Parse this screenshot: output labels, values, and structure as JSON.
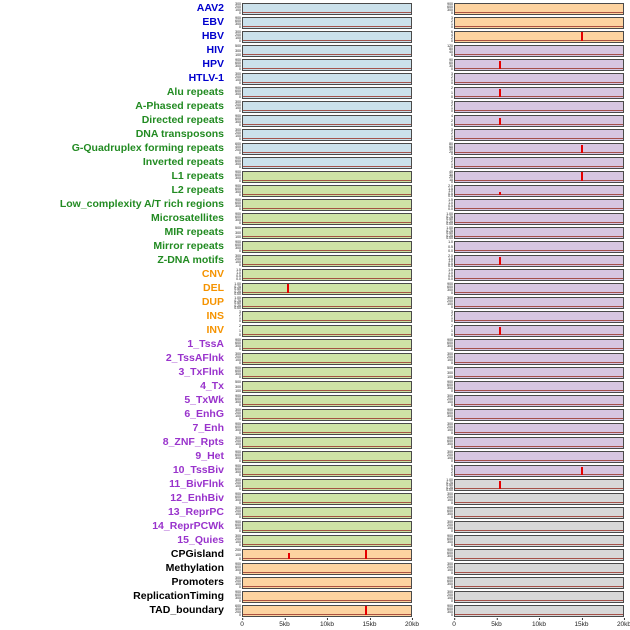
{
  "colors": {
    "labels": {
      "virus": "#0000cd",
      "repeat": "#228b22",
      "sv": "#f59300",
      "chromatin": "#9933cc",
      "other": "#000000"
    },
    "panels": {
      "blue": "#cbe1eb",
      "green": "#cfe3a6",
      "orange": "#fdd3a0",
      "purple": "#d7c6e1",
      "gray": "#d8d8d8"
    },
    "spike": "#e60000",
    "trace": "#9c3a30"
  },
  "chart_data": {
    "type": "line",
    "x_ticks": [
      "0",
      "5kb",
      "10kb",
      "15kb",
      "20kb"
    ],
    "x_range_kb": [
      0,
      20
    ],
    "rows": [
      {
        "label": "AAV2",
        "group": "virus",
        "left_bg": "blue",
        "right_bg": "orange",
        "lt": [
          "300",
          "200",
          "100",
          "0"
        ],
        "rt": [
          "900",
          "600",
          "300",
          "0"
        ],
        "ls": [],
        "rs": []
      },
      {
        "label": "EBV",
        "group": "virus",
        "left_bg": "blue",
        "right_bg": "orange",
        "lt": [
          "900",
          "600",
          "300",
          "0"
        ],
        "rt": [
          "3",
          "2",
          "1",
          "0"
        ],
        "ls": [],
        "rs": []
      },
      {
        "label": "HBV",
        "group": "virus",
        "left_bg": "blue",
        "right_bg": "orange",
        "lt": [
          "300",
          "200",
          "100",
          "0"
        ],
        "rt": [
          "6",
          "4",
          "2",
          "0"
        ],
        "ls": [],
        "rs": [
          {
            "kb": 15.1,
            "h": 0.85
          }
        ]
      },
      {
        "label": "HIV",
        "group": "virus",
        "left_bg": "blue",
        "right_bg": "purple",
        "lt": [
          "500",
          "300",
          "100"
        ],
        "rt": [
          "120",
          "80",
          "40",
          "0"
        ],
        "ls": [],
        "rs": []
      },
      {
        "label": "HPV",
        "group": "virus",
        "left_bg": "blue",
        "right_bg": "purple",
        "lt": [
          "900",
          "600",
          "300",
          "0"
        ],
        "rt": [
          "90",
          "60",
          "30",
          "0"
        ],
        "ls": [],
        "rs": [
          {
            "kb": 5.3,
            "h": 0.8
          }
        ]
      },
      {
        "label": "HTLV-1",
        "group": "virus",
        "left_bg": "blue",
        "right_bg": "purple",
        "lt": [
          "300",
          "200",
          "100",
          "0"
        ],
        "rt": [
          "3",
          "2",
          "1",
          "0"
        ],
        "ls": [],
        "rs": []
      },
      {
        "label": "Alu repeats",
        "group": "repeat",
        "left_bg": "blue",
        "right_bg": "purple",
        "lt": [
          "900",
          "600",
          "300",
          "0"
        ],
        "rt": [
          "2",
          "1",
          "0"
        ],
        "ls": [],
        "rs": [
          {
            "kb": 5.3,
            "h": 0.8
          }
        ]
      },
      {
        "label": "A-Phased repeats",
        "group": "repeat",
        "left_bg": "blue",
        "right_bg": "purple",
        "lt": [
          "300",
          "200",
          "100",
          "0"
        ],
        "rt": [
          "3",
          "2",
          "1",
          "0"
        ],
        "ls": [],
        "rs": []
      },
      {
        "label": "Directed repeats",
        "group": "repeat",
        "left_bg": "blue",
        "right_bg": "purple",
        "lt": [
          "900",
          "600",
          "300",
          "0"
        ],
        "rt": [
          "4",
          "2",
          "0"
        ],
        "ls": [],
        "rs": [
          {
            "kb": 5.4,
            "h": 0.7
          }
        ]
      },
      {
        "label": "DNA transposons",
        "group": "repeat",
        "left_bg": "blue",
        "right_bg": "purple",
        "lt": [
          "300",
          "200",
          "100",
          "0"
        ],
        "rt": [
          "3",
          "2",
          "1",
          "0"
        ],
        "ls": [],
        "rs": []
      },
      {
        "label": "G-Quadruplex forming repeats",
        "group": "repeat",
        "left_bg": "blue",
        "right_bg": "purple",
        "lt": [
          "600",
          "400",
          "200",
          "0"
        ],
        "rt": [
          "80",
          "60",
          "40",
          "20",
          "0"
        ],
        "ls": [],
        "rs": [
          {
            "kb": 15.1,
            "h": 0.8
          }
        ]
      },
      {
        "label": "Inverted repeats",
        "group": "repeat",
        "left_bg": "blue",
        "right_bg": "purple",
        "lt": [
          "900",
          "600",
          "300",
          "0"
        ],
        "rt": [
          "3",
          "2",
          "1",
          "0"
        ],
        "ls": [],
        "rs": []
      },
      {
        "label": "L1 repeats",
        "group": "repeat",
        "left_bg": "green",
        "right_bg": "purple",
        "lt": [
          "900",
          "600",
          "300",
          "0"
        ],
        "rt": [
          "40",
          "30",
          "20",
          "10",
          "0"
        ],
        "ls": [],
        "rs": [
          {
            "kb": 15.1,
            "h": 0.85
          }
        ]
      },
      {
        "label": "L2 repeats",
        "group": "repeat",
        "left_bg": "green",
        "right_bg": "purple",
        "lt": [
          "900",
          "600",
          "300",
          "0"
        ],
        "rt": [
          "2.0",
          "1.5",
          "1.0",
          "0.5",
          "0.0"
        ],
        "ls": [],
        "rs": [
          {
            "kb": 5.3,
            "h": 0.3
          }
        ]
      },
      {
        "label": "Low_complexity A/T rich regions",
        "group": "repeat",
        "left_bg": "green",
        "right_bg": "purple",
        "lt": [
          "900",
          "600",
          "300",
          "0"
        ],
        "rt": [
          "1.5",
          "1.0",
          "0.5",
          "0.0"
        ],
        "ls": [],
        "rs": []
      },
      {
        "label": "Microsatellites",
        "group": "repeat",
        "left_bg": "green",
        "right_bg": "purple",
        "lt": [
          "900",
          "600",
          "300",
          "0"
        ],
        "rt": [
          "1.00",
          "0.75",
          "0.50",
          "0.25",
          "0.00"
        ],
        "ls": [],
        "rs": []
      },
      {
        "label": "MIR repeats",
        "group": "repeat",
        "left_bg": "green",
        "right_bg": "purple",
        "lt": [
          "500",
          "300",
          "100"
        ],
        "rt": [
          "1.00",
          "0.75",
          "0.50",
          "0.25",
          "0.00"
        ],
        "ls": [],
        "rs": []
      },
      {
        "label": "Mirror repeats",
        "group": "repeat",
        "left_bg": "green",
        "right_bg": "purple",
        "lt": [
          "900",
          "600",
          "300",
          "0"
        ],
        "rt": [
          "1.0",
          "0.5",
          "0.0"
        ],
        "ls": [],
        "rs": []
      },
      {
        "label": "Z-DNA motifs",
        "group": "repeat",
        "left_bg": "green",
        "right_bg": "purple",
        "lt": [
          "300",
          "200",
          "100",
          "0"
        ],
        "rt": [
          "2.0",
          "1.5",
          "1.0",
          "0.5",
          "0.0"
        ],
        "ls": [],
        "rs": [
          {
            "kb": 5.3,
            "h": 0.75
          }
        ]
      },
      {
        "label": "CNV",
        "group": "sv",
        "left_bg": "green",
        "right_bg": "purple",
        "lt": [
          "1.5",
          "1.0",
          "0.5",
          "0.0"
        ],
        "rt": [
          "1.5",
          "1.0",
          "0.5",
          "0.0"
        ],
        "ls": [],
        "rs": []
      },
      {
        "label": "DEL",
        "group": "sv",
        "left_bg": "green",
        "right_bg": "purple",
        "lt": [
          "1.00",
          "0.75",
          "0.50",
          "0.25",
          "0.00"
        ],
        "rt": [
          "900",
          "600",
          "300",
          "0"
        ],
        "ls": [
          {
            "kb": 5.4,
            "h": 0.85
          }
        ],
        "rs": []
      },
      {
        "label": "DUP",
        "group": "sv",
        "left_bg": "green",
        "right_bg": "purple",
        "lt": [
          "1.00",
          "0.75",
          "0.50",
          "0.25",
          "0.00"
        ],
        "rt": [
          "300",
          "200",
          "100",
          "0"
        ],
        "ls": [],
        "rs": []
      },
      {
        "label": "INS",
        "group": "sv",
        "left_bg": "green",
        "right_bg": "purple",
        "lt": [
          "3",
          "2",
          "1",
          "0"
        ],
        "rt": [
          "3",
          "2",
          "1",
          "0"
        ],
        "ls": [],
        "rs": []
      },
      {
        "label": "INV",
        "group": "sv",
        "left_bg": "green",
        "right_bg": "purple",
        "lt": [
          "2",
          "1",
          "0"
        ],
        "rt": [
          "2",
          "1",
          "0"
        ],
        "ls": [],
        "rs": [
          {
            "kb": 5.3,
            "h": 0.8
          }
        ]
      },
      {
        "label": "1_TssA",
        "group": "chromatin",
        "left_bg": "green",
        "right_bg": "purple",
        "lt": [
          "900",
          "600",
          "300",
          "0"
        ],
        "rt": [
          "900",
          "600",
          "300",
          "0"
        ],
        "ls": [],
        "rs": []
      },
      {
        "label": "2_TssAFlnk",
        "group": "chromatin",
        "left_bg": "green",
        "right_bg": "purple",
        "lt": [
          "300",
          "200",
          "100",
          "0"
        ],
        "rt": [
          "300",
          "200",
          "100",
          "0"
        ],
        "ls": [],
        "rs": []
      },
      {
        "label": "3_TxFlnk",
        "group": "chromatin",
        "left_bg": "green",
        "right_bg": "purple",
        "lt": [
          "900",
          "600",
          "300",
          "0"
        ],
        "rt": [
          "500",
          "300",
          "100"
        ],
        "ls": [],
        "rs": []
      },
      {
        "label": "4_Tx",
        "group": "chromatin",
        "left_bg": "green",
        "right_bg": "purple",
        "lt": [
          "500",
          "300",
          "100"
        ],
        "rt": [
          "900",
          "600",
          "300",
          "0"
        ],
        "ls": [],
        "rs": []
      },
      {
        "label": "5_TxWk",
        "group": "chromatin",
        "left_bg": "green",
        "right_bg": "purple",
        "lt": [
          "900",
          "600",
          "300",
          "0"
        ],
        "rt": [
          "300",
          "200",
          "100",
          "0"
        ],
        "ls": [],
        "rs": []
      },
      {
        "label": "6_EnhG",
        "group": "chromatin",
        "left_bg": "green",
        "right_bg": "purple",
        "lt": [
          "300",
          "200",
          "100",
          "0"
        ],
        "rt": [
          "900",
          "600",
          "300",
          "0"
        ],
        "ls": [],
        "rs": []
      },
      {
        "label": "7_Enh",
        "group": "chromatin",
        "left_bg": "green",
        "right_bg": "purple",
        "lt": [
          "900",
          "600",
          "300",
          "0"
        ],
        "rt": [
          "300",
          "200",
          "100",
          "0"
        ],
        "ls": [],
        "rs": []
      },
      {
        "label": "8_ZNF_Rpts",
        "group": "chromatin",
        "left_bg": "green",
        "right_bg": "purple",
        "lt": [
          "300",
          "200",
          "100",
          "0"
        ],
        "rt": [
          "900",
          "600",
          "300",
          "0"
        ],
        "ls": [],
        "rs": []
      },
      {
        "label": "9_Het",
        "group": "chromatin",
        "left_bg": "green",
        "right_bg": "purple",
        "lt": [
          "900",
          "600",
          "300",
          "0"
        ],
        "rt": [
          "300",
          "200",
          "100",
          "0"
        ],
        "ls": [],
        "rs": []
      },
      {
        "label": "10_TssBiv",
        "group": "chromatin",
        "left_bg": "green",
        "right_bg": "purple",
        "lt": [
          "900",
          "600",
          "300",
          "0"
        ],
        "rt": [
          "6",
          "4",
          "2",
          "0"
        ],
        "ls": [],
        "rs": [
          {
            "kb": 15.1,
            "h": 0.8
          }
        ]
      },
      {
        "label": "11_BivFlnk",
        "group": "chromatin",
        "left_bg": "green",
        "right_bg": "gray",
        "lt": [
          "300",
          "200",
          "100",
          "0"
        ],
        "rt": [
          "1.00",
          "0.75",
          "0.50",
          "0.25",
          "0.00"
        ],
        "ls": [],
        "rs": [
          {
            "kb": 5.3,
            "h": 0.8
          }
        ]
      },
      {
        "label": "12_EnhBiv",
        "group": "chromatin",
        "left_bg": "green",
        "right_bg": "gray",
        "lt": [
          "900",
          "600",
          "300",
          "0"
        ],
        "rt": [
          "300",
          "200",
          "100",
          "0"
        ],
        "ls": [],
        "rs": []
      },
      {
        "label": "13_ReprPC",
        "group": "chromatin",
        "left_bg": "green",
        "right_bg": "gray",
        "lt": [
          "300",
          "200",
          "100",
          "0"
        ],
        "rt": [
          "900",
          "600",
          "300",
          "0"
        ],
        "ls": [],
        "rs": []
      },
      {
        "label": "14_ReprPCWk",
        "group": "chromatin",
        "left_bg": "green",
        "right_bg": "gray",
        "lt": [
          "900",
          "600",
          "300",
          "0"
        ],
        "rt": [
          "300",
          "200",
          "100",
          "0"
        ],
        "ls": [],
        "rs": []
      },
      {
        "label": "15_Quies",
        "group": "chromatin",
        "left_bg": "green",
        "right_bg": "gray",
        "lt": [
          "300",
          "200",
          "100",
          "0"
        ],
        "rt": [
          "900",
          "600",
          "300",
          "0"
        ],
        "ls": [],
        "rs": []
      },
      {
        "label": "CPGisland",
        "group": "other",
        "left_bg": "orange",
        "right_bg": "gray",
        "lt": [
          "200",
          "100",
          "0"
        ],
        "rt": [
          "900",
          "600",
          "300",
          "0"
        ],
        "ls": [
          {
            "kb": 5.5,
            "h": 0.55
          },
          {
            "kb": 14.7,
            "h": 0.85
          }
        ],
        "rs": []
      },
      {
        "label": "Methylation",
        "group": "other",
        "left_bg": "orange",
        "right_bg": "gray",
        "lt": [
          "900",
          "600",
          "300",
          "0"
        ],
        "rt": [
          "300",
          "200",
          "100",
          "0"
        ],
        "ls": [],
        "rs": []
      },
      {
        "label": "Promoters",
        "group": "other",
        "left_bg": "orange",
        "right_bg": "gray",
        "lt": [
          "300",
          "200",
          "100",
          "0"
        ],
        "rt": [
          "900",
          "600",
          "300",
          "0"
        ],
        "ls": [],
        "rs": []
      },
      {
        "label": "ReplicationTiming",
        "group": "other",
        "left_bg": "orange",
        "right_bg": "gray",
        "lt": [
          "900",
          "600",
          "300",
          "0"
        ],
        "rt": [
          "300",
          "200",
          "100",
          "0"
        ],
        "ls": [],
        "rs": []
      },
      {
        "label": "TAD_boundary",
        "group": "other",
        "left_bg": "orange",
        "right_bg": "gray",
        "lt": [
          "600",
          "400",
          "200",
          "0"
        ],
        "rt": [
          "900",
          "600",
          "300",
          "0"
        ],
        "ls": [
          {
            "kb": 14.7,
            "h": 0.85
          }
        ],
        "rs": []
      }
    ]
  }
}
